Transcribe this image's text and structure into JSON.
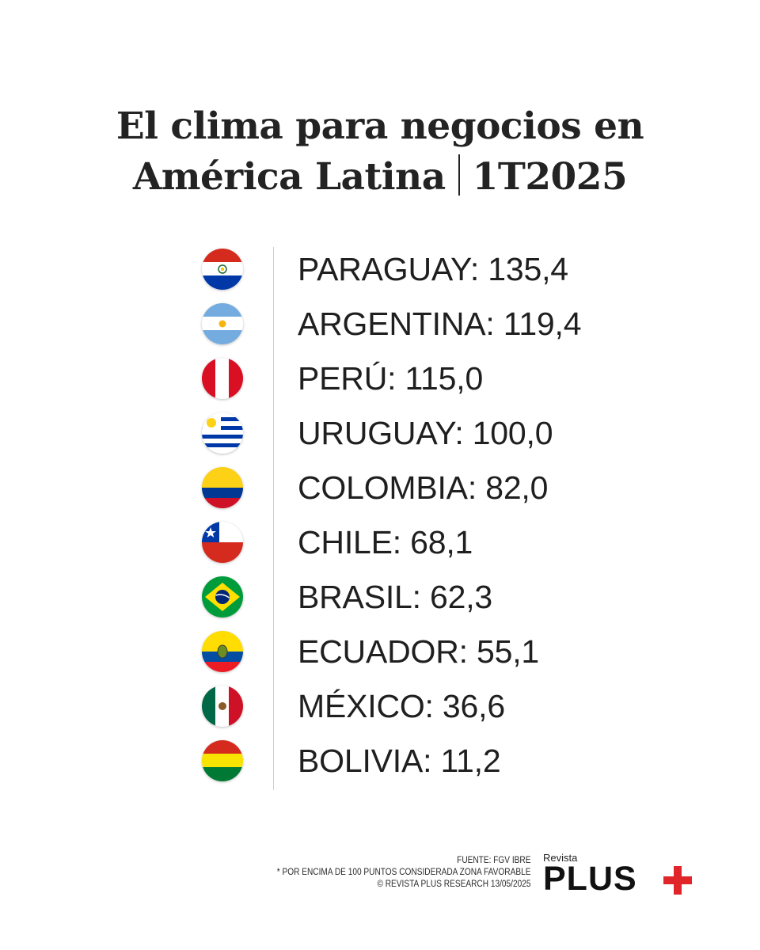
{
  "title": {
    "line1": "El clima para negocios en",
    "line2a": "América Latina",
    "line2b": "1T2025"
  },
  "rows": [
    {
      "label": "PARAGUAY: 135,4",
      "flag": "paraguay-flag-icon"
    },
    {
      "label": "ARGENTINA: 119,4",
      "flag": "argentina-flag-icon"
    },
    {
      "label": "PERÚ: 115,0",
      "flag": "peru-flag-icon"
    },
    {
      "label": "URUGUAY: 100,0",
      "flag": "uruguay-flag-icon"
    },
    {
      "label": "COLOMBIA: 82,0",
      "flag": "colombia-flag-icon"
    },
    {
      "label": "CHILE: 68,1",
      "flag": "chile-flag-icon"
    },
    {
      "label": "BRASIL: 62,3",
      "flag": "brazil-flag-icon"
    },
    {
      "label": "ECUADOR: 55,1",
      "flag": "ecuador-flag-icon"
    },
    {
      "label": "MÉXICO: 36,6",
      "flag": "mexico-flag-icon"
    },
    {
      "label": "BOLIVIA: 11,2",
      "flag": "bolivia-flag-icon"
    }
  ],
  "footer": {
    "line1": "FUENTE: FGV IBRE",
    "line2": "* POR ENCIMA DE 100 PUNTOS CONSIDERADA ZONA FAVORABLE",
    "line3": "© REVISTA PLUS RESEARCH 13/05/2025"
  },
  "brand": {
    "small": "Revista",
    "big": "PLUS"
  },
  "colors": {
    "text": "#1f1f1f",
    "brand_red": "#e0262a"
  }
}
